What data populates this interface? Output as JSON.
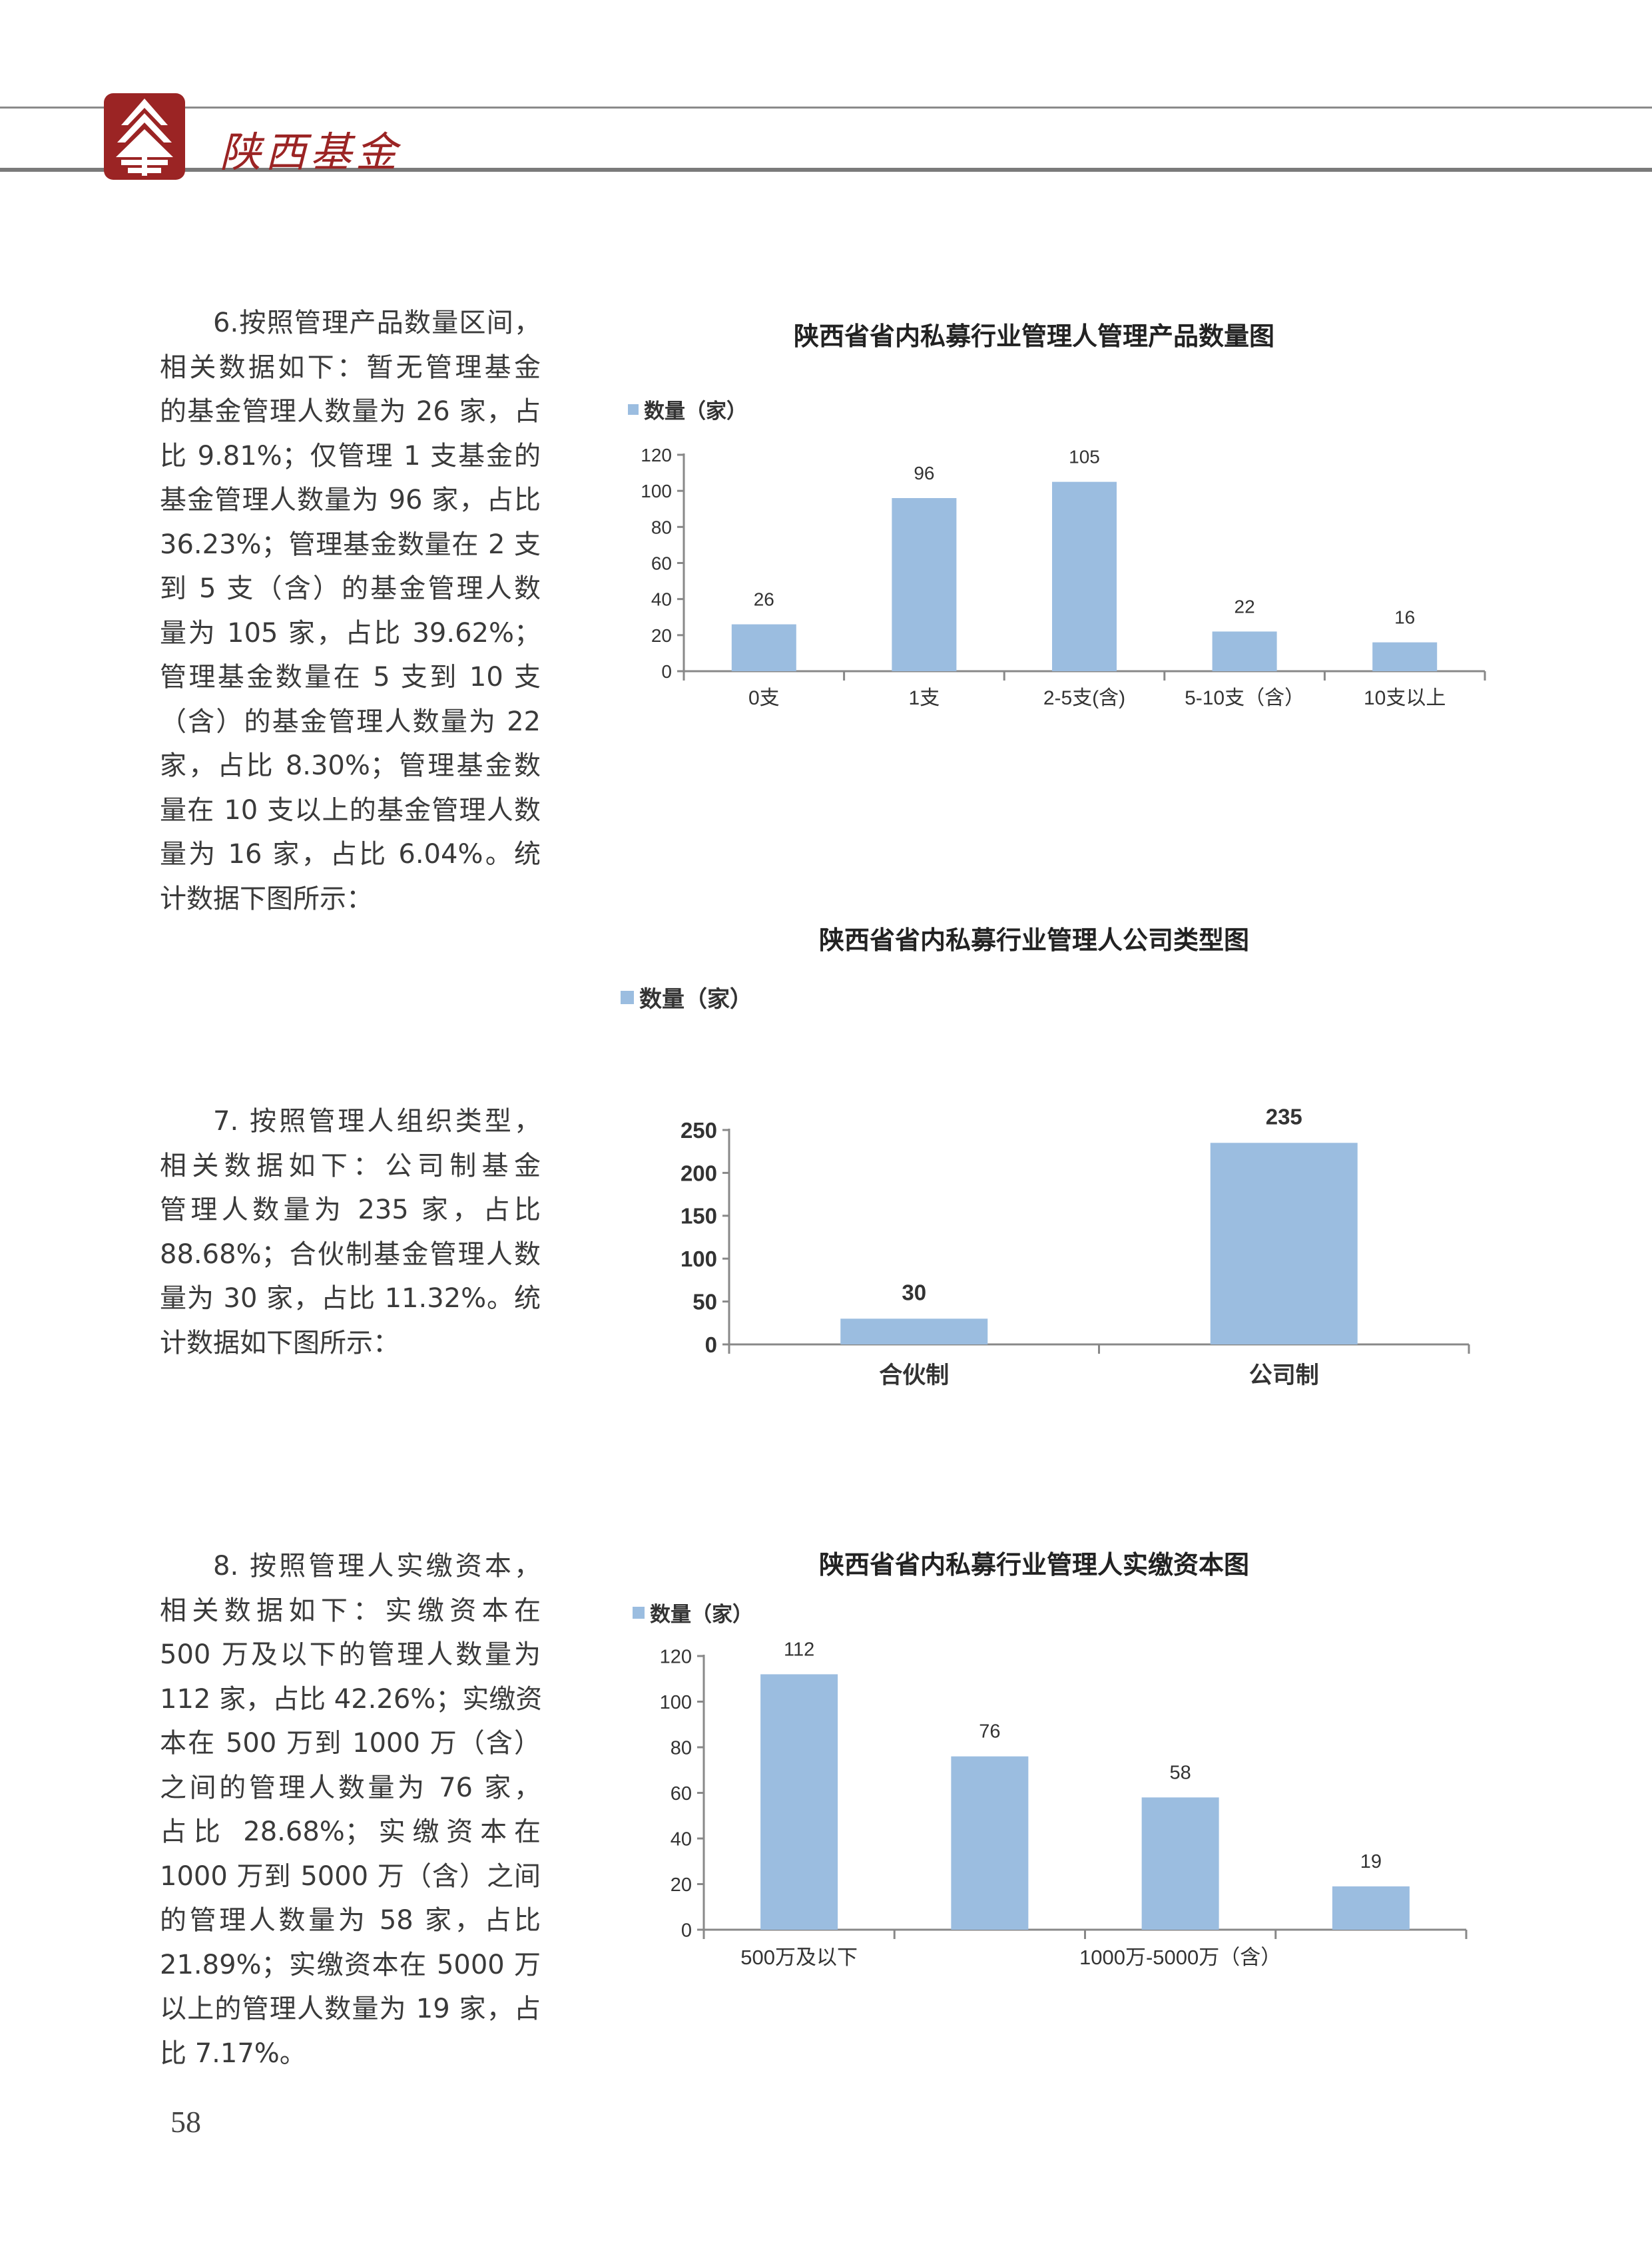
{
  "header": {
    "logo_text": "陕西基金",
    "brand_color": "#9b2424"
  },
  "paragraphs": [
    {
      "lines": [
        "6.按照管理产品数量区间，",
        "相关数据如下：暂无管理基金",
        "的基金管理人数量为 26 家，占",
        "比 9.81%；仅管理 1 支基金的",
        "基金管理人数量为 96 家，占比",
        "36.23%；管理基金数量在 2 支",
        "到 5 支（含）的基金管理人数",
        "量为 105 家，占比 39.62%；",
        "管理基金数量在 5 支到 10 支",
        "（含）的基金管理人数量为 22",
        "家，占比 8.30%；管理基金数",
        "量在 10 支以上的基金管理人数",
        "量为 16 家，占比 6.04%。统",
        "计数据下图所示："
      ]
    },
    {
      "lines": [
        "7. 按照管理人组织类型，",
        "相关数据如下：公司制基金",
        "管理人数量为 235 家，占比",
        "88.68%；合伙制基金管理人数",
        "量为 30 家，占比 11.32%。统",
        "计数据如下图所示："
      ]
    },
    {
      "lines": [
        "8. 按照管理人实缴资本，",
        "相关数据如下：实缴资本在",
        "500 万及以下的管理人数量为",
        "112 家，占比 42.26%；实缴资",
        "本在 500 万到 1000 万（含）",
        "之间的管理人数量为 76 家，",
        "占比 28.68%；实缴资本在",
        "1000 万到 5000 万（含）之间",
        "的管理人数量为 58 家，占比",
        "21.89%；实缴资本在 5000 万",
        "以上的管理人数量为 19 家，占",
        "比 7.17%。"
      ]
    }
  ],
  "page_number": "58",
  "chart_data": [
    {
      "type": "bar",
      "title": "陕西省省内私募行业管理人管理产品数量图",
      "legend": "数量（家）",
      "legend_position": "top-left",
      "series": [
        {
          "name": "数量（家）",
          "values": [
            26,
            96,
            105,
            22,
            16
          ]
        }
      ],
      "categories": [
        "0支",
        "1支",
        "2-5支(含)",
        "5-10支（含）",
        "10支以上"
      ],
      "yticks": [
        0,
        20,
        40,
        60,
        80,
        100,
        120
      ],
      "ylim": [
        0,
        120
      ],
      "grid": false,
      "color": "#9bbde0"
    },
    {
      "type": "bar",
      "title": "陕西省省内私募行业管理人公司类型图",
      "legend": "数量（家）",
      "legend_position": "top-left",
      "series": [
        {
          "name": "数量（家）",
          "values": [
            30,
            235
          ]
        }
      ],
      "categories": [
        "合伙制",
        "公司制"
      ],
      "yticks": [
        0,
        50,
        100,
        150,
        200,
        250
      ],
      "ylim": [
        0,
        250
      ],
      "grid": false,
      "color": "#9bbde0"
    },
    {
      "type": "bar",
      "title": "陕西省省内私募行业管理人实缴资本图",
      "legend": "数量（家）",
      "legend_position": "top-left",
      "series": [
        {
          "name": "数量（家）",
          "values": [
            112,
            76,
            58,
            19
          ]
        }
      ],
      "categories": [
        "500万及以下",
        "",
        "1000万-5000万（含）",
        ""
      ],
      "yticks": [
        0,
        20,
        40,
        60,
        80,
        100,
        120
      ],
      "ylim": [
        0,
        120
      ],
      "grid": false,
      "color": "#9bbde0"
    }
  ]
}
